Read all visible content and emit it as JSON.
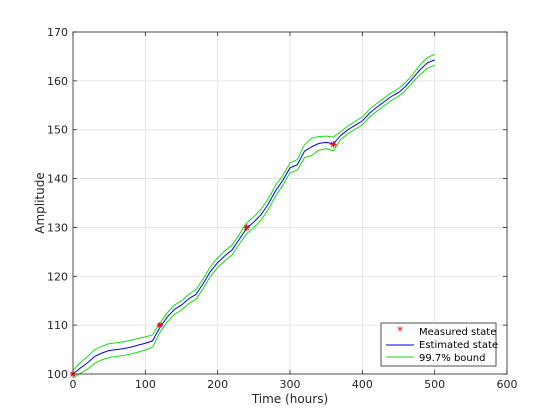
{
  "chart_data": {
    "type": "line",
    "title": "",
    "xlabel": "Time (hours)",
    "ylabel": "Amplitude",
    "xlim": [
      0,
      600
    ],
    "ylim": [
      100,
      170
    ],
    "xticks": [
      0,
      100,
      200,
      300,
      400,
      500,
      600
    ],
    "yticks": [
      100,
      110,
      120,
      130,
      140,
      150,
      160,
      170
    ],
    "grid": true,
    "legend_position": "bottom-right",
    "series": [
      {
        "name": "Measured state",
        "style": "marker",
        "marker": "*",
        "color": "#ff0000",
        "x": [
          0,
          120,
          240,
          360
        ],
        "y": [
          100,
          110,
          130,
          147
        ]
      },
      {
        "name": "Estimated state",
        "style": "line",
        "color": "#0000ff",
        "x": [
          0,
          10,
          20,
          30,
          40,
          50,
          60,
          70,
          80,
          90,
          100,
          110,
          120,
          130,
          140,
          150,
          160,
          170,
          180,
          190,
          200,
          210,
          220,
          230,
          240,
          250,
          260,
          270,
          280,
          290,
          300,
          310,
          320,
          330,
          340,
          350,
          360,
          370,
          380,
          390,
          400,
          410,
          420,
          430,
          440,
          450,
          460,
          470,
          480,
          490,
          500
        ],
        "y": [
          100,
          101.2,
          102.3,
          103.6,
          104.3,
          104.8,
          105,
          105.2,
          105.5,
          105.9,
          106.3,
          106.8,
          109.5,
          111.6,
          113.2,
          114.1,
          115.4,
          116.3,
          118.5,
          121,
          122.8,
          124.2,
          125.4,
          127.6,
          129.8,
          131.1,
          132.6,
          134.8,
          137.5,
          139.6,
          142.2,
          142.8,
          145.6,
          146.5,
          147.2,
          147.4,
          147.1,
          148.8,
          150,
          150.9,
          151.8,
          153.4,
          154.6,
          155.7,
          156.8,
          157.6,
          158.9,
          160.6,
          162.3,
          163.7,
          164.3
        ]
      },
      {
        "name": "99.7% bound",
        "style": "band",
        "color": "#00dd00",
        "x": [
          0,
          10,
          20,
          30,
          40,
          50,
          60,
          70,
          80,
          90,
          100,
          110,
          120,
          130,
          140,
          150,
          160,
          170,
          180,
          190,
          200,
          210,
          220,
          230,
          240,
          250,
          260,
          270,
          280,
          290,
          300,
          310,
          320,
          330,
          340,
          350,
          360,
          370,
          380,
          390,
          400,
          410,
          420,
          430,
          440,
          450,
          460,
          470,
          480,
          490,
          500
        ],
        "upper": [
          100.8,
          102.3,
          103.6,
          105,
          105.7,
          106.2,
          106.4,
          106.6,
          106.9,
          107.3,
          107.6,
          108,
          110.4,
          112.5,
          114.1,
          115,
          116.3,
          117.3,
          119.5,
          122,
          123.8,
          125.2,
          126.4,
          128.6,
          130.9,
          132.2,
          133.7,
          135.9,
          138.6,
          140.6,
          143.2,
          143.9,
          146.9,
          148.3,
          148.6,
          148.7,
          148.5,
          149.6,
          150.8,
          151.7,
          152.6,
          154.2,
          155.4,
          156.5,
          157.6,
          158.4,
          159.7,
          161.4,
          163.3,
          164.8,
          165.4
        ],
        "lower": [
          99.2,
          100.1,
          101,
          102.2,
          102.9,
          103.4,
          103.6,
          103.8,
          104.1,
          104.5,
          104.9,
          105.5,
          108.5,
          110.6,
          112.2,
          113.1,
          114.4,
          115.3,
          117.5,
          120,
          121.8,
          123.2,
          124.4,
          126.6,
          128.7,
          130,
          131.5,
          133.7,
          136.4,
          138.6,
          141.2,
          141.7,
          144.3,
          144.7,
          145.8,
          146.1,
          145.7,
          148,
          149.2,
          150.1,
          151,
          152.6,
          153.8,
          154.9,
          156,
          156.8,
          158.1,
          159.8,
          161.3,
          162.6,
          163.2
        ]
      }
    ]
  }
}
